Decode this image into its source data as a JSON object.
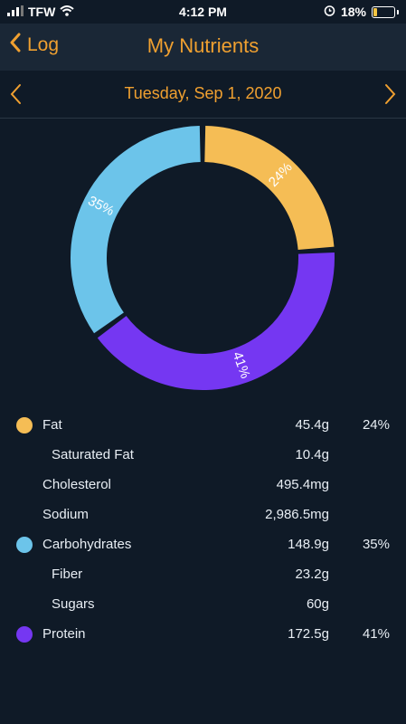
{
  "status_bar": {
    "carrier": "TFW",
    "time": "4:12 PM",
    "battery": "18%",
    "battery_level": 0.18
  },
  "nav": {
    "back_label": "Log",
    "title": "My Nutrients"
  },
  "date_bar": {
    "date": "Tuesday, Sep 1, 2020"
  },
  "colors": {
    "fat": "#f5bd55",
    "carbohydrates": "#6cc4ea",
    "protein": "#7537f2",
    "accent": "#f0a030",
    "background": "#0f1a27"
  },
  "chart_data": {
    "type": "pie",
    "variant": "donut",
    "slices": [
      {
        "label": "24%",
        "value": 24,
        "color": "#f5bd55"
      },
      {
        "label": "41%",
        "value": 41,
        "color": "#7537f2"
      },
      {
        "label": "35%",
        "value": 35,
        "color": "#6cc4ea"
      }
    ]
  },
  "nutrients": [
    {
      "name": "Fat",
      "amount": "45.4g",
      "percent": "24%",
      "color": "#f5bd55",
      "sub": false
    },
    {
      "name": "Saturated Fat",
      "amount": "10.4g",
      "percent": "",
      "color": "",
      "sub": true
    },
    {
      "name": "Cholesterol",
      "amount": "495.4mg",
      "percent": "",
      "color": "",
      "sub": false
    },
    {
      "name": "Sodium",
      "amount": "2,986.5mg",
      "percent": "",
      "color": "",
      "sub": false
    },
    {
      "name": "Carbohydrates",
      "amount": "148.9g",
      "percent": "35%",
      "color": "#6cc4ea",
      "sub": false
    },
    {
      "name": "Fiber",
      "amount": "23.2g",
      "percent": "",
      "color": "",
      "sub": true
    },
    {
      "name": "Sugars",
      "amount": "60g",
      "percent": "",
      "color": "",
      "sub": true
    },
    {
      "name": "Protein",
      "amount": "172.5g",
      "percent": "41%",
      "color": "#7537f2",
      "sub": false
    }
  ]
}
